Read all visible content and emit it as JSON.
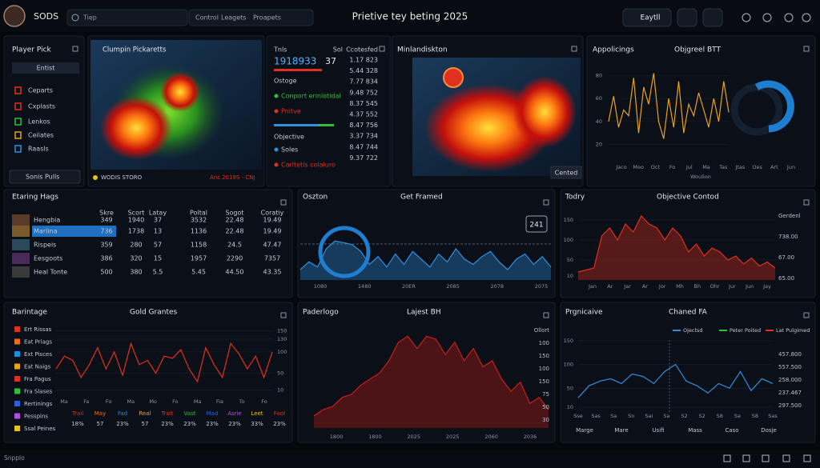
{
  "header": {
    "logo": "SODS",
    "search": "Tiep",
    "tabs": [
      "Control",
      "Leagets",
      "Proapets"
    ],
    "title": "Prietive tey beting 2025",
    "button": "Eaytll"
  },
  "player_pick": {
    "title": "Player Pick",
    "button": "Entist",
    "items": [
      "Ceparts",
      "Cxplasts",
      "Lenkos",
      "Ceilates",
      "Raasls"
    ],
    "footer": "Sonis Pulls"
  },
  "map_panel": {
    "title": "Clumpin Pickaretts",
    "footer": "WODIS STORO",
    "footer_right": "Ans 2019S - CNJ"
  },
  "stats": {
    "headers": [
      "Tnls",
      "Sol",
      "Ccotesfed"
    ],
    "big": "1918933",
    "big2": "37",
    "labels": [
      "Ostoge",
      "Conport erinlotidal",
      "Pnitve",
      "Objective",
      "Soles",
      "Carltetis colaluro"
    ],
    "values": [
      "1.17 823",
      "5.44 328",
      "7.77 834",
      "9.48 752",
      "8.37 545",
      "4.37 552",
      "8.47 756",
      "3.37 734",
      "8.47 744",
      "9.37 722"
    ]
  },
  "region_map": {
    "title": "Minlandiskton",
    "button": "Cented"
  },
  "table": {
    "title": "Etaring Hags",
    "headers": [
      "Skre",
      "Scort",
      "Latay",
      "Poltal",
      "Sogot",
      "Coratiy"
    ],
    "names": [
      "Hengbia",
      "Marlina",
      "Rispeis",
      "Eesgoots",
      "Heal Tonte"
    ],
    "rows": [
      [
        "349",
        "1940",
        "37",
        "3532",
        "22.48",
        "19.49"
      ],
      [
        "736",
        "1738",
        "13",
        "1136",
        "22.48",
        "19.49"
      ],
      [
        "359",
        "280",
        "57",
        "1158",
        "24.5",
        "47.47"
      ],
      [
        "386",
        "320",
        "15",
        "1957",
        "2290",
        "7357"
      ],
      [
        "500",
        "380",
        "5.5",
        "5.45",
        "44.50",
        "43.35"
      ]
    ]
  },
  "chart1": {
    "type": "line",
    "title": "Appolicings",
    "subtitle": "Objgreel BTT",
    "color": "#e8a21c",
    "values": [
      40,
      62,
      35,
      50,
      45,
      78,
      30,
      70,
      55,
      82,
      40,
      25,
      60,
      35,
      75,
      30,
      55,
      45,
      65,
      50,
      35,
      60,
      40,
      75,
      48
    ],
    "ylim": [
      10,
      90
    ],
    "yticks": [
      20,
      40,
      60,
      80
    ],
    "x_labels": [
      "Jaco",
      "Moo",
      "Oct",
      "Fo",
      "Jul",
      "Ma",
      "Tas",
      "Jtas",
      "Oes",
      "Art",
      "Jun"
    ],
    "footnote": "Woulion"
  },
  "chart2": {
    "type": "area",
    "title": "Oszton",
    "subtitle": "Get Framed",
    "color": "#2f8fe0",
    "badge": "241",
    "values": [
      20,
      35,
      25,
      60,
      75,
      72,
      68,
      55,
      30,
      45,
      25,
      50,
      30,
      55,
      40,
      25,
      50,
      35,
      60,
      40,
      30,
      45,
      55,
      35,
      20,
      40,
      50,
      30,
      45,
      25
    ],
    "ylim": [
      0,
      100
    ],
    "x_labels": [
      "1080",
      "1480",
      "20ER",
      "2085",
      "2078",
      "2075"
    ]
  },
  "chart3": {
    "type": "area",
    "title": "Todry",
    "subtitle": "Objective Contod",
    "color": "#e0301e",
    "values": [
      20,
      25,
      30,
      110,
      130,
      100,
      140,
      120,
      160,
      140,
      130,
      100,
      130,
      110,
      70,
      90,
      60,
      80,
      70,
      50,
      60,
      40,
      55,
      35,
      45,
      30
    ],
    "ylim": [
      0,
      170
    ],
    "yticks": [
      10,
      50,
      100,
      150
    ],
    "side_labels": [
      "Gerdenl",
      "738.00",
      "67.00",
      "65.00"
    ],
    "x_labels": [
      "Jan",
      "Ar",
      "Jar",
      "Ar",
      "Jor",
      "Mh",
      "Bh",
      "Ohr",
      "Jur",
      "Jun",
      "Jay"
    ]
  },
  "chart4": {
    "type": "line",
    "title": "Barintage",
    "subtitle": "Gold Grantes",
    "color": "#e0301e",
    "values": [
      60,
      90,
      80,
      40,
      70,
      110,
      60,
      100,
      45,
      120,
      70,
      80,
      50,
      90,
      85,
      105,
      60,
      30,
      110,
      70,
      40,
      120,
      95,
      60,
      90,
      40,
      100
    ],
    "ylim": [
      0,
      160
    ],
    "yticks": [
      10,
      50,
      100,
      130,
      150
    ],
    "legend": [
      {
        "name": "Ert Rissas",
        "color": "#e0301e"
      },
      {
        "name": "Eat Priags",
        "color": "#f26b1d"
      },
      {
        "name": "Ext Pisces",
        "color": "#1e8fe0"
      },
      {
        "name": "Eat Naigs",
        "color": "#e8a21c"
      },
      {
        "name": "Fra Pagus",
        "color": "#e0301e"
      },
      {
        "name": "Fra Slases",
        "color": "#2fbf3a"
      },
      {
        "name": "Rertinings",
        "color": "#2f5fe0"
      },
      {
        "name": "Pesspins",
        "color": "#b04fe0"
      },
      {
        "name": "Ssal Peines",
        "color": "#e8c21c"
      }
    ],
    "x_labels": [
      "Ma",
      "Fa",
      "Fo",
      "Ma",
      "Mo",
      "Fo",
      "Ma",
      "Fia",
      "To",
      "Fo"
    ],
    "categories": [
      "Trail",
      "May",
      "Fad",
      "Real",
      "Trait",
      "Vast",
      "Mad",
      "Asrie",
      "Leet",
      "Fool"
    ],
    "category_values": [
      "18%",
      "57",
      "23%",
      "57",
      "23%",
      "23%",
      "23%",
      "23%",
      "33%",
      "23%"
    ]
  },
  "chart5": {
    "type": "area",
    "title": "Paderlogo",
    "subtitle": "Lajest BH",
    "color": "#c8201a",
    "values": [
      20,
      30,
      35,
      50,
      55,
      70,
      80,
      90,
      110,
      140,
      150,
      130,
      150,
      145,
      120,
      140,
      110,
      130,
      100,
      110,
      80,
      60,
      75,
      40,
      50,
      30
    ],
    "ylim": [
      0,
      170
    ],
    "side_labels": [
      "Ollort",
      "100",
      "150",
      "100",
      "150",
      "75",
      "50",
      "30"
    ],
    "x_labels": [
      "1800",
      "1800",
      "2025",
      "2025",
      "2060",
      "2036"
    ]
  },
  "chart6": {
    "type": "line",
    "title": "Prgnicaive",
    "subtitle": "Chaned FA",
    "color": "#2f8fe0",
    "values": [
      30,
      55,
      65,
      70,
      60,
      80,
      75,
      60,
      85,
      100,
      65,
      55,
      40,
      60,
      50,
      85,
      45,
      70,
      60
    ],
    "ylim": [
      0,
      160
    ],
    "yticks": [
      10,
      50,
      100,
      150
    ],
    "legend": [
      {
        "name": "Ojectsd",
        "color": "#2f8fe0"
      },
      {
        "name": "Peter Poited",
        "color": "#2fbf3a"
      },
      {
        "name": "Lat Pulgimed",
        "color": "#e0301e"
      }
    ],
    "side_labels": [
      "457.800",
      "557.500",
      "258.000",
      "237.467",
      "297.500"
    ],
    "x_labels": [
      "Sse",
      "Sas",
      "Sa",
      "Sn",
      "Sai",
      "Sa",
      "S2",
      "S2",
      "S8",
      "Sa",
      "S8",
      "Sas"
    ],
    "footer_labels": [
      "Marge",
      "Mare",
      "Usifi",
      "Mass",
      "Caso",
      "Dosje"
    ]
  },
  "footer": {
    "text": "Snpplo"
  }
}
